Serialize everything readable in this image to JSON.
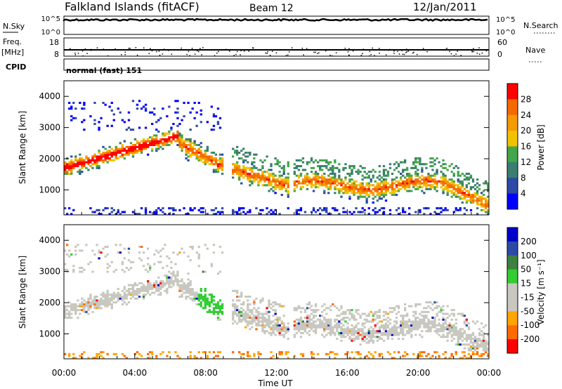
{
  "header": {
    "station": "Falkland Islands (fitACF)",
    "beam": "Beam 12",
    "date": "12/Jan/2011"
  },
  "top_panels": {
    "nsky_label": "N.Sky",
    "nsky_ticks": [
      "10^5",
      "10^0"
    ],
    "nsearch_label": "N.Search",
    "nsearch_ticks": [
      "10^5",
      "10^0"
    ],
    "freq_label": "Freq.",
    "freq_unit": "[MHz]",
    "freq_ticks": [
      "18",
      "8"
    ],
    "nave_label": "Nave",
    "nave_ticks": [
      "60",
      "0"
    ],
    "cpid_label": "CPID",
    "cpid_value": "normal (fast) 151"
  },
  "x_axis": {
    "label": "Time UT",
    "ticks": [
      "00:00",
      "04:00",
      "08:00",
      "12:00",
      "16:00",
      "20:00",
      "00:00"
    ]
  },
  "colors": {
    "power": [
      "#0000ff",
      "#2c4aa6",
      "#3b7d6f",
      "#44a64a",
      "#f2c200",
      "#f59a00",
      "#f56a00",
      "#ff0000"
    ],
    "velocity": [
      "#ff0000",
      "#ff6a00",
      "#ffa500",
      "#c8c8c0",
      "#c8c8c0",
      "#33cc33",
      "#3f8040",
      "#2c4aa6",
      "#0000cc"
    ]
  },
  "chart_data": [
    {
      "type": "heatmap",
      "name": "power",
      "ylabel": "Slant Range [km]",
      "yticks": [
        "4000",
        "3000",
        "2000",
        "1000"
      ],
      "ylim": [
        200,
        4500
      ],
      "xlim": [
        0,
        24
      ],
      "colorbar_label": "Power [dB]",
      "colorbar_ticks": [
        "28",
        "24",
        "20",
        "16",
        "12",
        "8",
        "4"
      ],
      "colorbar_range": [
        0,
        32
      ]
    },
    {
      "type": "heatmap",
      "name": "velocity",
      "ylabel": "Slant Range [km]",
      "yticks": [
        "4000",
        "3000",
        "2000",
        "1000"
      ],
      "ylim": [
        200,
        4500
      ],
      "xlim": [
        0,
        24
      ],
      "colorbar_label": "Velocity [m s⁻¹]",
      "colorbar_ticks": [
        "200",
        "100",
        "50",
        "15",
        "-15",
        "-50",
        "-100",
        "-200"
      ]
    }
  ]
}
